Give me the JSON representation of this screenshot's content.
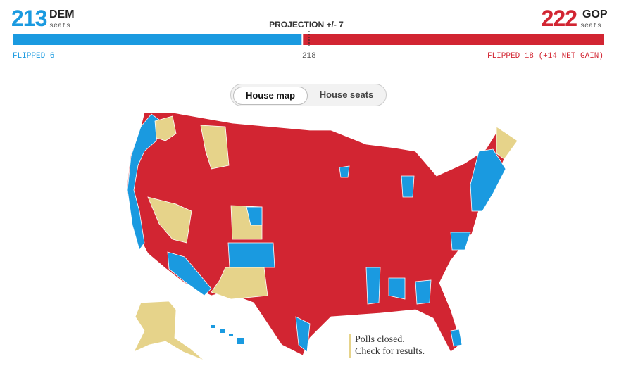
{
  "header": {
    "dem": {
      "seats": 213,
      "label": "DEM",
      "unit": "seats",
      "flipped": "FLIPPED 6"
    },
    "gop": {
      "seats": 222,
      "label": "GOP",
      "unit": "seats",
      "flipped": "FLIPPED 18 (+14 NET GAIN)"
    },
    "projection": "PROJECTION +/- 7",
    "majority": 218
  },
  "toggle": [
    "House map",
    "House seats"
  ],
  "legend": [
    "Polls closed.",
    "Check for results."
  ]
}
